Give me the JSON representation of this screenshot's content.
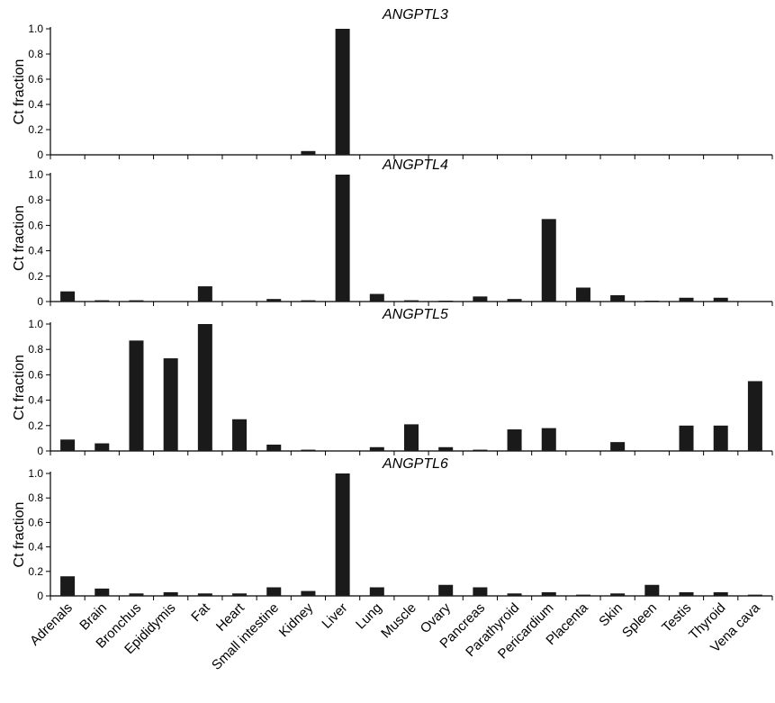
{
  "chart_data": {
    "type": "bar",
    "categories": [
      "Adrenals",
      "Brain",
      "Bronchus",
      "Epididymis",
      "Fat",
      "Heart",
      "Small intestine",
      "Kidney",
      "Liver",
      "Lung",
      "Muscle",
      "Ovary",
      "Pancreas",
      "Parathyroid",
      "Pericardium",
      "Placenta",
      "Skin",
      "Spleen",
      "Testis",
      "Thyroid",
      "Vena cava"
    ],
    "ylabel": "Ct fraction",
    "ylim": [
      0,
      1.0
    ],
    "yticks": [
      "0",
      "0.2",
      "0.4",
      "0.6",
      "0.8",
      "1.0"
    ],
    "series": [
      {
        "name": "ANGPTL3",
        "values": [
          0,
          0,
          0,
          0,
          0,
          0,
          0,
          0.03,
          1.0,
          0,
          0,
          0,
          0,
          0,
          0,
          0,
          0,
          0,
          0,
          0,
          0
        ]
      },
      {
        "name": "ANGPTL4",
        "values": [
          0.08,
          0.01,
          0.01,
          0,
          0.12,
          0,
          0.02,
          0.01,
          1.0,
          0.06,
          0.01,
          0.005,
          0.04,
          0.02,
          0.65,
          0.11,
          0.05,
          0.005,
          0.03,
          0.03,
          0
        ]
      },
      {
        "name": "ANGPTL5",
        "values": [
          0.09,
          0.06,
          0.87,
          0.73,
          1.0,
          0.25,
          0.05,
          0.01,
          0,
          0.03,
          0.21,
          0.03,
          0.01,
          0.17,
          0.18,
          0,
          0.07,
          0,
          0.2,
          0.2,
          0.55
        ]
      },
      {
        "name": "ANGPTL6",
        "values": [
          0.16,
          0.06,
          0.02,
          0.03,
          0.02,
          0.02,
          0.07,
          0.04,
          1.0,
          0.07,
          0,
          0.09,
          0.07,
          0.02,
          0.03,
          0.01,
          0.02,
          0.09,
          0.03,
          0.03,
          0.01
        ]
      }
    ],
    "grid": false
  }
}
